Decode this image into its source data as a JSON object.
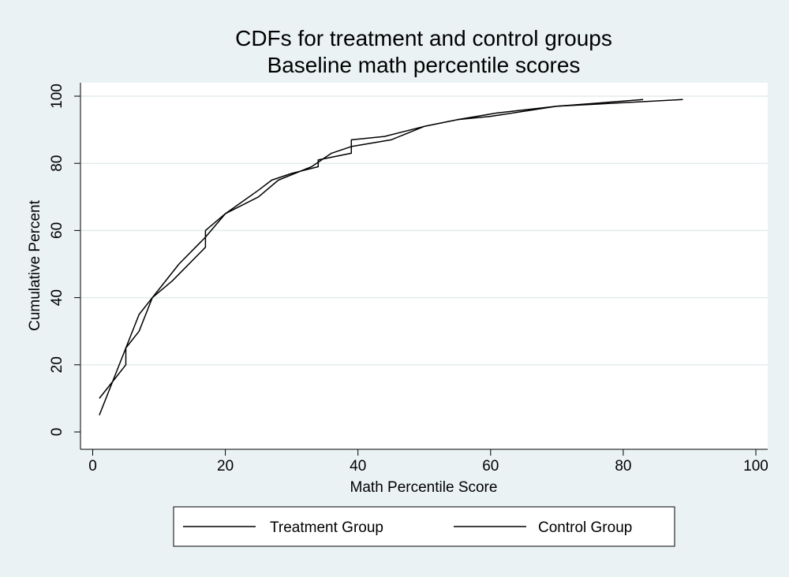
{
  "chart_data": {
    "type": "line",
    "title": "CDFs for treatment and control groups",
    "subtitle": "Baseline math percentile scores",
    "xlabel": "Math Percentile Score",
    "ylabel": "Cumulative Percent",
    "xlim": [
      0,
      100
    ],
    "ylim": [
      0,
      100
    ],
    "xticks": [
      "0",
      "20",
      "40",
      "60",
      "80",
      "100"
    ],
    "yticks": [
      "0",
      "20",
      "40",
      "60",
      "80",
      "100"
    ],
    "grid": true,
    "legend_position": "bottom",
    "series": [
      {
        "name": "Treatment Group",
        "color": "#000000",
        "points": [
          [
            1,
            5
          ],
          [
            3,
            15
          ],
          [
            5,
            25
          ],
          [
            7,
            35
          ],
          [
            9,
            40
          ],
          [
            13,
            50
          ],
          [
            17,
            58
          ],
          [
            20,
            65
          ],
          [
            25,
            72
          ],
          [
            27,
            75
          ],
          [
            30,
            77
          ],
          [
            34,
            79
          ],
          [
            34,
            81
          ],
          [
            39,
            83
          ],
          [
            39,
            87
          ],
          [
            44,
            88
          ],
          [
            50,
            91
          ],
          [
            55,
            93
          ],
          [
            60,
            94
          ],
          [
            70,
            97
          ],
          [
            83,
            99
          ]
        ]
      },
      {
        "name": "Control Group",
        "color": "#000000",
        "points": [
          [
            1,
            10
          ],
          [
            3,
            15
          ],
          [
            5,
            20
          ],
          [
            5,
            25
          ],
          [
            7,
            30
          ],
          [
            9,
            40
          ],
          [
            12,
            45
          ],
          [
            17,
            55
          ],
          [
            17,
            60
          ],
          [
            20,
            65
          ],
          [
            25,
            70
          ],
          [
            28,
            75
          ],
          [
            33,
            79
          ],
          [
            36,
            83
          ],
          [
            39,
            85
          ],
          [
            45,
            87
          ],
          [
            50,
            91
          ],
          [
            55,
            93
          ],
          [
            61,
            95
          ],
          [
            70,
            97
          ],
          [
            89,
            99
          ]
        ]
      }
    ]
  }
}
